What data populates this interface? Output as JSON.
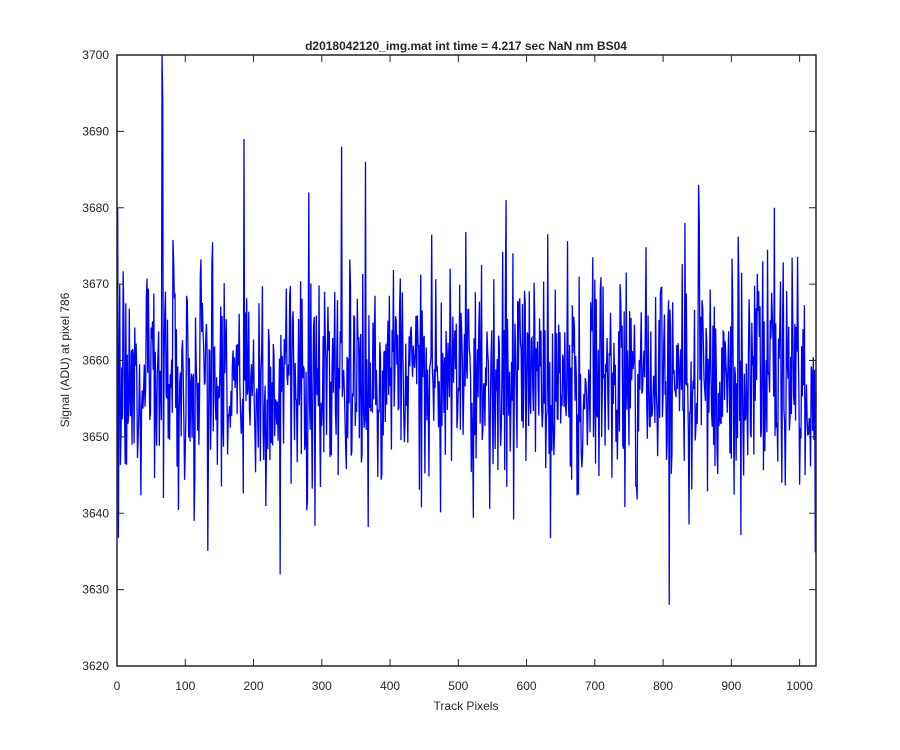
{
  "chart_data": {
    "type": "line",
    "title": "d2018042120_img.mat int time = 4.217 sec  NaN nm BS04",
    "xlabel": "Track Pixels",
    "ylabel": "Signal (ADU) at pixel 786",
    "xlim": [
      0,
      1024
    ],
    "ylim": [
      3620,
      3700
    ],
    "xticks": [
      "0",
      "100",
      "200",
      "300",
      "400",
      "500",
      "600",
      "700",
      "800",
      "900",
      "1000"
    ],
    "yticks": [
      "3620",
      "3630",
      "3640",
      "3650",
      "3660",
      "3670",
      "3680",
      "3690",
      "3700"
    ],
    "grid": false,
    "box": true,
    "series": [
      {
        "color": "#0000ff",
        "x_start": 1,
        "x_step": 1,
        "num_points": 1024,
        "baseline": 3658,
        "approx_std": 7.5,
        "notable_points": [
          {
            "x": 1,
            "y": 3680
          },
          {
            "x": 3,
            "y": 3658
          },
          {
            "x": 66,
            "y": 3700
          },
          {
            "x": 67,
            "y": 3694
          },
          {
            "x": 68,
            "y": 3642
          },
          {
            "x": 113,
            "y": 3639
          },
          {
            "x": 186,
            "y": 3689
          },
          {
            "x": 239,
            "y": 3632
          },
          {
            "x": 281,
            "y": 3682
          },
          {
            "x": 329,
            "y": 3688
          },
          {
            "x": 364,
            "y": 3686
          },
          {
            "x": 570,
            "y": 3681
          },
          {
            "x": 809,
            "y": 3628
          },
          {
            "x": 852,
            "y": 3683
          },
          {
            "x": 963,
            "y": 3680
          },
          {
            "x": 1008,
            "y": 3645
          }
        ]
      }
    ]
  }
}
